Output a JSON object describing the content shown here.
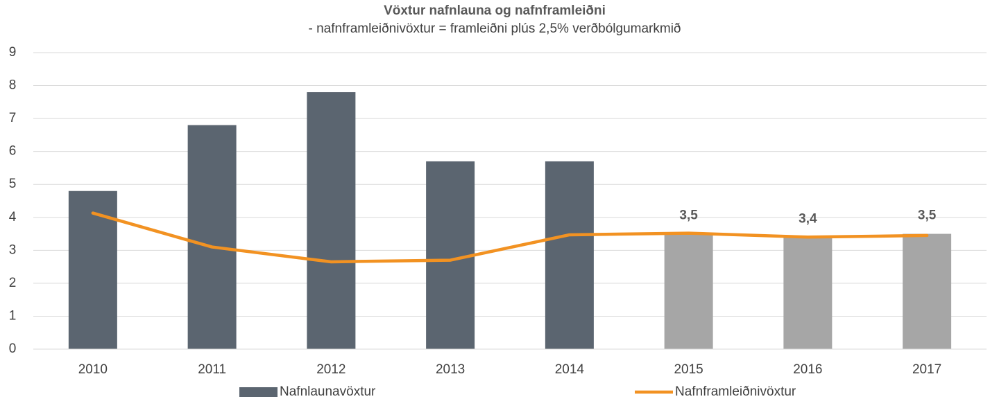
{
  "chart_data": {
    "type": "bar_line",
    "title": "Vöxtur nafnlauna og nafnframleiðni",
    "subtitle": "- nafnframleiðnivöxtur = framleiðni plús 2,5% verðbólgumarkmið",
    "categories": [
      "2010",
      "2011",
      "2012",
      "2013",
      "2014",
      "2015",
      "2016",
      "2017"
    ],
    "series": [
      {
        "name": "Nafnlaunavöxtur",
        "kind": "bar",
        "color": "#5b6570",
        "colors": [
          "#5b6570",
          "#5b6570",
          "#5b6570",
          "#5b6570",
          "#5b6570",
          "#a6a6a6",
          "#a6a6a6",
          "#a6a6a6"
        ],
        "values": [
          4.8,
          6.8,
          7.8,
          5.7,
          5.7,
          3.5,
          3.4,
          3.5
        ],
        "value_labels": [
          null,
          null,
          null,
          null,
          null,
          "3,5",
          "3,4",
          "3,5"
        ]
      },
      {
        "name": "Nafnframleiðnivöxtur",
        "kind": "line",
        "color": "#f29222",
        "values": [
          4.13,
          3.1,
          2.65,
          2.7,
          3.47,
          3.52,
          3.4,
          3.45
        ]
      }
    ],
    "ylim": [
      0,
      9
    ],
    "yticks": [
      0,
      1,
      2,
      3,
      4,
      5,
      6,
      7,
      8,
      9
    ],
    "grid": true,
    "legend": "bottom"
  }
}
